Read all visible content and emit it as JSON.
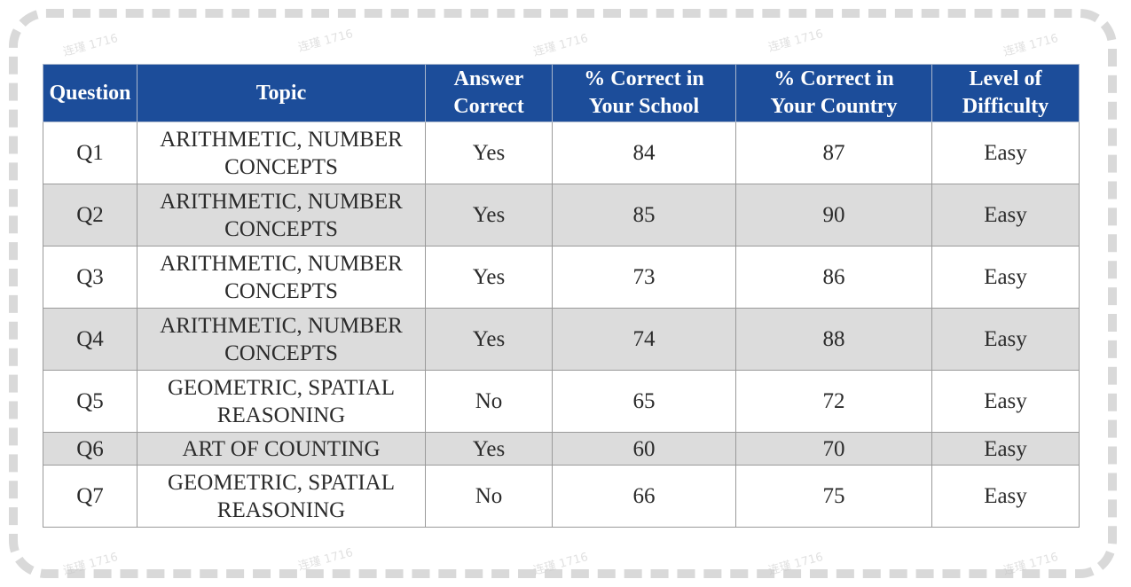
{
  "watermark_text": "连瑾 1716",
  "colors": {
    "header_bg": "#1c4d9a",
    "header_text": "#ffffff",
    "alt_row_bg": "#dcdcdc",
    "frame_border": "#d9d9d9"
  },
  "table": {
    "headers": [
      "Question",
      "Topic",
      "Answer Correct",
      "% Correct in Your School",
      "% Correct in Your Country",
      "Level of Difficulty"
    ],
    "header_lines": [
      [
        "Question"
      ],
      [
        "Topic"
      ],
      [
        "Answer",
        "Correct"
      ],
      [
        "% Correct in",
        "Your School"
      ],
      [
        "% Correct in",
        "Your Country"
      ],
      [
        "Level of",
        "Difficulty"
      ]
    ],
    "rows": [
      {
        "question": "Q1",
        "topic_lines": [
          "ARITHMETIC, NUMBER",
          "CONCEPTS"
        ],
        "answer_correct": "Yes",
        "pct_school": "84",
        "pct_country": "87",
        "difficulty": "Easy"
      },
      {
        "question": "Q2",
        "topic_lines": [
          "ARITHMETIC, NUMBER",
          "CONCEPTS"
        ],
        "answer_correct": "Yes",
        "pct_school": "85",
        "pct_country": "90",
        "difficulty": "Easy"
      },
      {
        "question": "Q3",
        "topic_lines": [
          "ARITHMETIC, NUMBER",
          "CONCEPTS"
        ],
        "answer_correct": "Yes",
        "pct_school": "73",
        "pct_country": "86",
        "difficulty": "Easy"
      },
      {
        "question": "Q4",
        "topic_lines": [
          "ARITHMETIC, NUMBER",
          "CONCEPTS"
        ],
        "answer_correct": "Yes",
        "pct_school": "74",
        "pct_country": "88",
        "difficulty": "Easy"
      },
      {
        "question": "Q5",
        "topic_lines": [
          "GEOMETRIC, SPATIAL",
          "REASONING"
        ],
        "answer_correct": "No",
        "pct_school": "65",
        "pct_country": "72",
        "difficulty": "Easy"
      },
      {
        "question": "Q6",
        "topic_lines": [
          "ART OF COUNTING"
        ],
        "answer_correct": "Yes",
        "pct_school": "60",
        "pct_country": "70",
        "difficulty": "Easy"
      },
      {
        "question": "Q7",
        "topic_lines": [
          "GEOMETRIC, SPATIAL",
          "REASONING"
        ],
        "answer_correct": "No",
        "pct_school": "66",
        "pct_country": "75",
        "difficulty": "Easy"
      }
    ]
  }
}
